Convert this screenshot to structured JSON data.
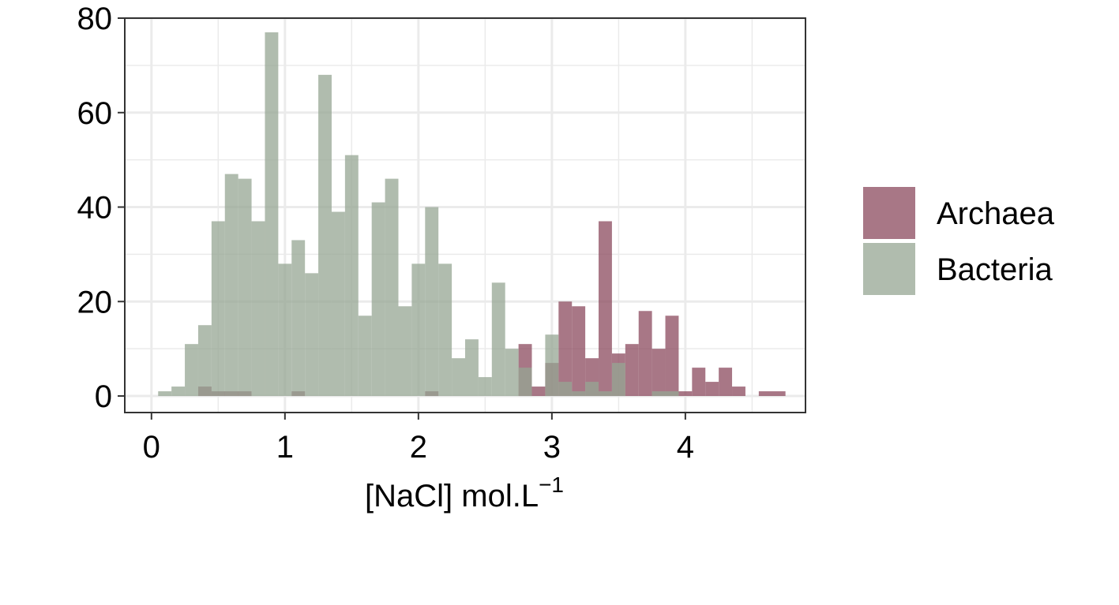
{
  "chart_data": {
    "type": "histogram",
    "xlabel": "[NaCl] mol.L",
    "xlabel_superscript": "−1",
    "xlim": [
      -0.2,
      4.9
    ],
    "ylim": [
      -3.5,
      80
    ],
    "x_ticks": [
      0,
      1,
      2,
      3,
      4
    ],
    "y_ticks": [
      0,
      20,
      40,
      60,
      80
    ],
    "grid": true,
    "legend_position": "right",
    "bin_width": 0.1,
    "series": [
      {
        "name": "Archaea",
        "color": "#8b4a5d",
        "bins": [
          {
            "x0": 0.35,
            "x1": 0.45,
            "count": 2
          },
          {
            "x0": 0.45,
            "x1": 0.75,
            "count": 1
          },
          {
            "x0": 1.05,
            "x1": 1.15,
            "count": 1
          },
          {
            "x0": 2.05,
            "x1": 2.15,
            "count": 1
          },
          {
            "x0": 2.75,
            "x1": 2.85,
            "count": 11
          },
          {
            "x0": 2.85,
            "x1": 2.95,
            "count": 2
          },
          {
            "x0": 2.95,
            "x1": 3.05,
            "count": 7
          },
          {
            "x0": 3.05,
            "x1": 3.15,
            "count": 20
          },
          {
            "x0": 3.15,
            "x1": 3.25,
            "count": 19
          },
          {
            "x0": 3.25,
            "x1": 3.35,
            "count": 8
          },
          {
            "x0": 3.35,
            "x1": 3.45,
            "count": 37
          },
          {
            "x0": 3.45,
            "x1": 3.55,
            "count": 9
          },
          {
            "x0": 3.55,
            "x1": 3.65,
            "count": 11
          },
          {
            "x0": 3.65,
            "x1": 3.75,
            "count": 18
          },
          {
            "x0": 3.75,
            "x1": 3.85,
            "count": 10
          },
          {
            "x0": 3.85,
            "x1": 3.95,
            "count": 17
          },
          {
            "x0": 3.95,
            "x1": 4.05,
            "count": 1
          },
          {
            "x0": 4.05,
            "x1": 4.15,
            "count": 6
          },
          {
            "x0": 4.15,
            "x1": 4.25,
            "count": 3
          },
          {
            "x0": 4.25,
            "x1": 4.35,
            "count": 6
          },
          {
            "x0": 4.35,
            "x1": 4.45,
            "count": 2
          },
          {
            "x0": 4.55,
            "x1": 4.75,
            "count": 1
          }
        ]
      },
      {
        "name": "Bacteria",
        "color": "#96a593",
        "bins": [
          {
            "x0": 0.05,
            "x1": 0.15,
            "count": 1
          },
          {
            "x0": 0.15,
            "x1": 0.25,
            "count": 2
          },
          {
            "x0": 0.25,
            "x1": 0.35,
            "count": 11
          },
          {
            "x0": 0.35,
            "x1": 0.45,
            "count": 15
          },
          {
            "x0": 0.45,
            "x1": 0.55,
            "count": 37
          },
          {
            "x0": 0.55,
            "x1": 0.65,
            "count": 47
          },
          {
            "x0": 0.65,
            "x1": 0.75,
            "count": 46
          },
          {
            "x0": 0.75,
            "x1": 0.85,
            "count": 37
          },
          {
            "x0": 0.85,
            "x1": 0.95,
            "count": 77
          },
          {
            "x0": 0.95,
            "x1": 1.05,
            "count": 28
          },
          {
            "x0": 1.05,
            "x1": 1.15,
            "count": 33
          },
          {
            "x0": 1.15,
            "x1": 1.25,
            "count": 26
          },
          {
            "x0": 1.25,
            "x1": 1.35,
            "count": 68
          },
          {
            "x0": 1.35,
            "x1": 1.45,
            "count": 39
          },
          {
            "x0": 1.45,
            "x1": 1.55,
            "count": 51
          },
          {
            "x0": 1.55,
            "x1": 1.65,
            "count": 17
          },
          {
            "x0": 1.65,
            "x1": 1.75,
            "count": 41
          },
          {
            "x0": 1.75,
            "x1": 1.85,
            "count": 46
          },
          {
            "x0": 1.85,
            "x1": 1.95,
            "count": 19
          },
          {
            "x0": 1.95,
            "x1": 2.05,
            "count": 28
          },
          {
            "x0": 2.05,
            "x1": 2.15,
            "count": 40
          },
          {
            "x0": 2.15,
            "x1": 2.25,
            "count": 28
          },
          {
            "x0": 2.25,
            "x1": 2.35,
            "count": 8
          },
          {
            "x0": 2.35,
            "x1": 2.45,
            "count": 12
          },
          {
            "x0": 2.45,
            "x1": 2.55,
            "count": 4
          },
          {
            "x0": 2.55,
            "x1": 2.65,
            "count": 24
          },
          {
            "x0": 2.65,
            "x1": 2.75,
            "count": 10
          },
          {
            "x0": 2.75,
            "x1": 2.85,
            "count": 6
          },
          {
            "x0": 2.95,
            "x1": 3.05,
            "count": 13
          },
          {
            "x0": 3.05,
            "x1": 3.15,
            "count": 3
          },
          {
            "x0": 3.15,
            "x1": 3.25,
            "count": 1
          },
          {
            "x0": 3.25,
            "x1": 3.35,
            "count": 3
          },
          {
            "x0": 3.35,
            "x1": 3.45,
            "count": 1
          },
          {
            "x0": 3.45,
            "x1": 3.55,
            "count": 7
          },
          {
            "x0": 3.75,
            "x1": 3.95,
            "count": 1
          }
        ]
      }
    ]
  }
}
